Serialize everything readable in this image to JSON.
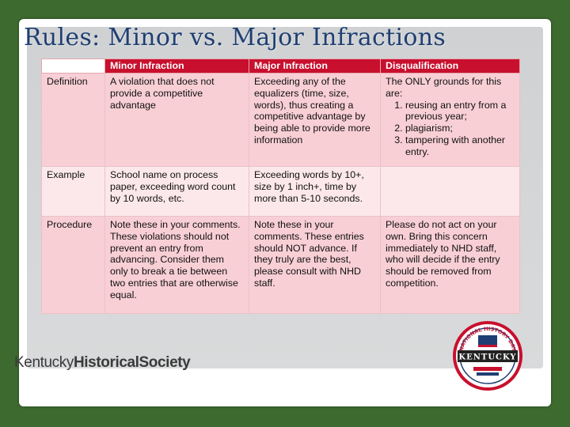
{
  "slide": {
    "title": "Rules: Minor vs. Major Infractions"
  },
  "table": {
    "headers": [
      "",
      "Minor Infraction",
      "Major Infraction",
      "Disqualification"
    ],
    "rows": [
      {
        "label": "Definition",
        "minor": "A violation that does not provide a competitive advantage",
        "major": "Exceeding any of the equalizers (time, size, words), thus creating a competitive advantage by being able to provide more information",
        "disq_intro": "The ONLY grounds for this are:",
        "disq_items": [
          "reusing an entry from a previous year;",
          "plagiarism;",
          "tampering with another entry."
        ]
      },
      {
        "label": "Example",
        "minor": "School name on process paper, exceeding word count by 10 words, etc.",
        "major": "Exceeding words by 10+, size by 1 inch+, time by more than 5-10 seconds.",
        "disq": ""
      },
      {
        "label": "Procedure",
        "minor": "Note these in your comments. These violations should not prevent an entry from advancing. Consider them only to break a tie between two entries that are otherwise equal.",
        "major": "Note these in your comments.  These entries should NOT advance.  If they truly are the best, please consult with NHD staff.",
        "disq": "Please do not act on your own. Bring this concern immediately to NHD staff, who will decide if the entry should be removed from competition."
      }
    ]
  },
  "footer": {
    "logo_light": "Kentucky",
    "logo_bold": "HistoricalSociety"
  },
  "seal": {
    "top_text": "NATIONAL HISTORY DAY",
    "center_text": "KENTUCKY",
    "colors": {
      "red": "#c8102e",
      "blue": "#1f3f72",
      "dark": "#222222"
    }
  }
}
